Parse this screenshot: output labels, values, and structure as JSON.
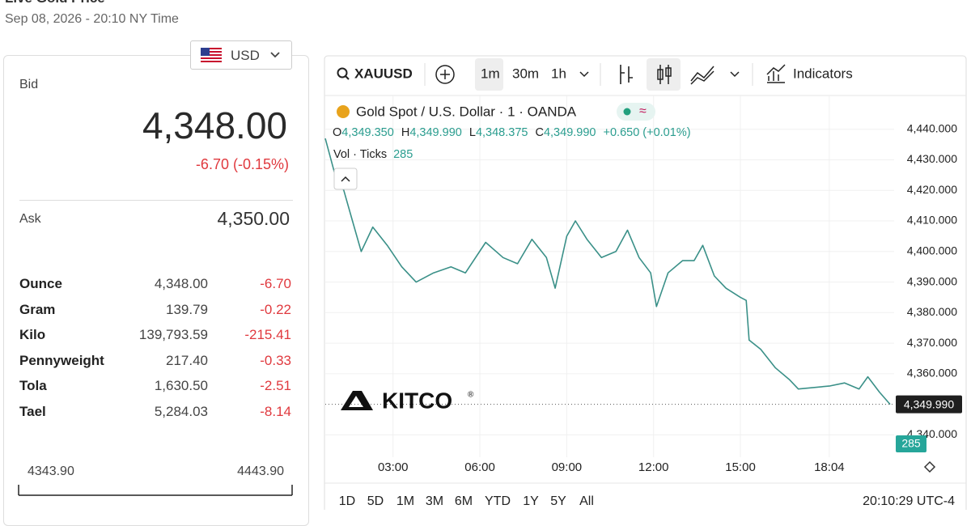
{
  "header": {
    "title": "Live Gold Price",
    "timestamp": "Sep 08, 2026 - 20:10 NY Time"
  },
  "currency": "USD",
  "quote": {
    "bid_label": "Bid",
    "bid": "4,348.00",
    "change": "-6.70 (-0.15%)",
    "ask_label": "Ask",
    "ask": "4,350.00"
  },
  "units": [
    [
      "Ounce",
      "4,348.00",
      "-6.70"
    ],
    [
      "Gram",
      "139.79",
      "-0.22"
    ],
    [
      "Kilo",
      "139,793.59",
      "-215.41"
    ],
    [
      "Pennyweight",
      "217.40",
      "-0.33"
    ],
    [
      "Tola",
      "1,630.50",
      "-2.51"
    ],
    [
      "Tael",
      "5,284.03",
      "-8.14"
    ]
  ],
  "range": {
    "low": "4343.90",
    "high": "4443.90"
  },
  "toolbar": {
    "symbol": "XAUUSD",
    "intervals": [
      "1m",
      "30m",
      "1h"
    ],
    "indicators": "Indicators"
  },
  "legend": {
    "title": "Gold Spot / U.S. Dollar · 1 · OANDA",
    "ohlc": [
      {
        "key": "O",
        "value": "4,349.350"
      },
      {
        "key": "H",
        "value": "4,349.990"
      },
      {
        "key": "L",
        "value": "4,348.375"
      },
      {
        "key": "C",
        "value": "4,349.990"
      }
    ],
    "change": "+0.650 (+0.01%)",
    "volume_label": "Vol · Ticks",
    "volume": "285"
  },
  "watermark": "KITCO",
  "periods": [
    "1D",
    "5D",
    "1M",
    "3M",
    "6M",
    "YTD",
    "1Y",
    "5Y",
    "All"
  ],
  "clock": "20:10:29 UTC-4",
  "chart_data": {
    "type": "line",
    "color": "#3a9088",
    "x": [
      0.66,
      1.0,
      1.3,
      1.6,
      1.9,
      2.3,
      2.8,
      3.3,
      3.8,
      4.4,
      5.0,
      5.5,
      6.2,
      6.8,
      7.3,
      7.8,
      8.3,
      8.6,
      9.0,
      9.3,
      9.7,
      10.2,
      10.7,
      11.1,
      11.5,
      11.9,
      12.1,
      12.5,
      13.0,
      13.4,
      13.7,
      14.1,
      14.5,
      15.0,
      15.2,
      15.3,
      15.7,
      16.2,
      16.7,
      17.0,
      18.1,
      18.6,
      19.1,
      19.4,
      19.8,
      20.17
    ],
    "values": [
      4437,
      4425,
      4420,
      4410,
      4400,
      4408,
      4402,
      4395,
      4390,
      4393,
      4395,
      4393,
      4403,
      4398,
      4396,
      4404,
      4398,
      4388,
      4405,
      4410,
      4404,
      4398,
      4400,
      4407,
      4398,
      4393,
      4382,
      4393,
      4397,
      4397,
      4402,
      4392,
      4388,
      4385,
      4384,
      4371,
      4368,
      4362,
      4358,
      4355,
      4356,
      4357,
      4355,
      4359,
      4354,
      4350
    ],
    "xlim": [
      0.66,
      20.17
    ],
    "xticks": [
      {
        "value": 3,
        "label": "03:00"
      },
      {
        "value": 6,
        "label": "06:00"
      },
      {
        "value": 9,
        "label": "09:00"
      },
      {
        "value": 12,
        "label": "12:00"
      },
      {
        "value": 15,
        "label": "15:00"
      },
      {
        "value": 18.07,
        "label": "18:04"
      }
    ],
    "ylim": [
      4334,
      4450
    ],
    "yticks": [
      {
        "value": 4340,
        "label": "4,340.000"
      },
      {
        "value": 4360,
        "label": "4,360.000"
      },
      {
        "value": 4370,
        "label": "4,370.000"
      },
      {
        "value": 4380,
        "label": "4,380.000"
      },
      {
        "value": 4390,
        "label": "4,390.000"
      },
      {
        "value": 4400,
        "label": "4,400.000"
      },
      {
        "value": 4410,
        "label": "4,410.000"
      },
      {
        "value": 4420,
        "label": "4,420.000"
      },
      {
        "value": 4430,
        "label": "4,430.000"
      },
      {
        "value": 4440,
        "label": "4,440.000"
      }
    ],
    "grid": true,
    "last_price": {
      "value": 4349.99,
      "label": "4,349.990"
    }
  }
}
